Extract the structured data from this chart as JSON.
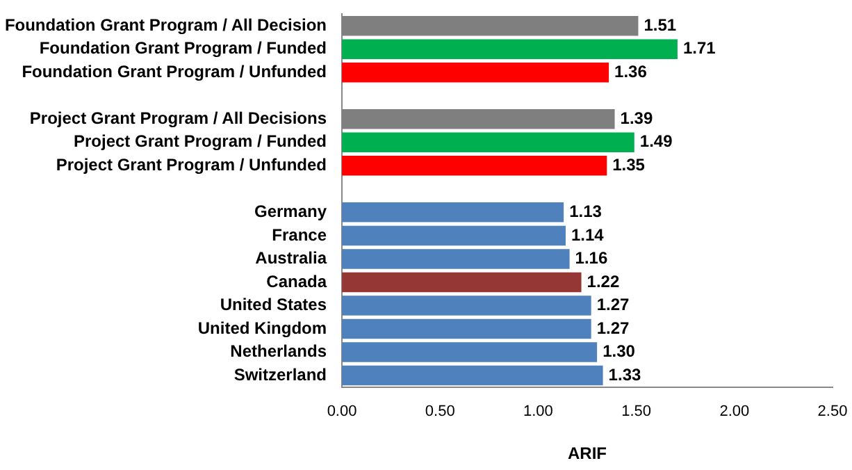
{
  "chart_data": {
    "type": "bar",
    "orientation": "horizontal",
    "xlabel": "ARIF",
    "categories": [
      "Foundation Grant Program / All Decision",
      "Foundation Grant Program / Funded",
      "Foundation Grant Program / Unfunded",
      null,
      "Project Grant Program / All Decisions",
      "Project Grant Program / Funded",
      "Project Grant Program / Unfunded",
      null,
      "Germany",
      "France",
      "Australia",
      "Canada",
      "United States",
      "United Kingdom",
      "Netherlands",
      "Switzerland"
    ],
    "values": [
      1.51,
      1.71,
      1.36,
      null,
      1.39,
      1.49,
      1.35,
      null,
      1.13,
      1.14,
      1.16,
      1.22,
      1.27,
      1.27,
      1.3,
      1.33
    ],
    "colors": [
      "#7f7f7f",
      "#00b050",
      "#ff0000",
      "#ffffff",
      "#7f7f7f",
      "#00b050",
      "#ff0000",
      "#ffffff",
      "#4f81bd",
      "#4f81bd",
      "#4f81bd",
      "#953735",
      "#4f81bd",
      "#4f81bd",
      "#4f81bd",
      "#4f81bd"
    ],
    "value_labels": [
      "1.51",
      "1.71",
      "1.36",
      null,
      "1.39",
      "1.49",
      "1.35",
      null,
      "1.13",
      "1.14",
      "1.16",
      "1.22",
      "1.27",
      "1.27",
      "1.30",
      "1.33"
    ],
    "xlim": [
      0,
      2.5
    ],
    "xticks": [
      {
        "value": 0,
        "label": "0.00"
      },
      {
        "value": 0.5,
        "label": "0.50"
      },
      {
        "value": 1,
        "label": "1.00"
      },
      {
        "value": 1.5,
        "label": "1.50"
      },
      {
        "value": 2,
        "label": "2.00"
      },
      {
        "value": 2.5,
        "label": "2.50"
      }
    ],
    "grid": false,
    "legend": false
  }
}
